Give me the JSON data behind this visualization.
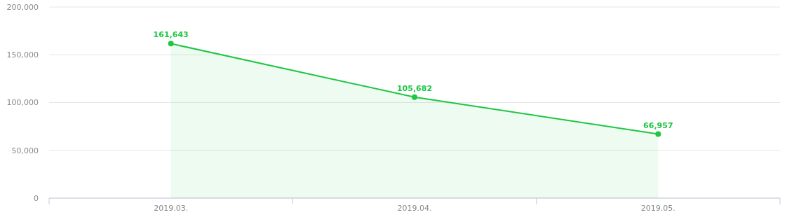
{
  "chart_data": {
    "type": "area",
    "categories": [
      "2019.03.",
      "2019.04.",
      "2019.05."
    ],
    "series": [
      {
        "color": "#1ec643",
        "values": [
          161643,
          105682,
          66957
        ],
        "value_labels": [
          "161,643",
          "105,682",
          "66,957"
        ]
      }
    ],
    "ylim": [
      0,
      200000
    ],
    "yticks": [
      0,
      {
        "value": 50000,
        "label": "50,000"
      },
      {
        "value": 100000,
        "label": "100,000"
      },
      {
        "value": 150000,
        "label": "150,000"
      },
      {
        "value": 200000,
        "label": "200,000"
      }
    ],
    "grid": "y",
    "marker": "circle"
  }
}
